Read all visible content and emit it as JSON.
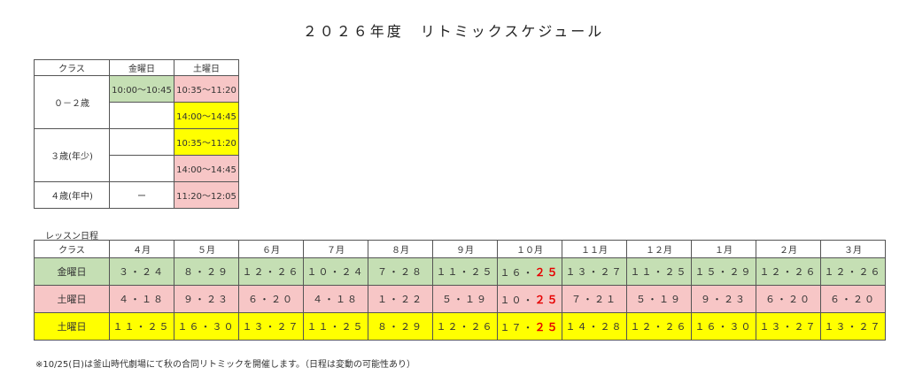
{
  "title": "２０２６年度　リトミックスケジュール",
  "class_table": {
    "headers": [
      "クラス",
      "金曜日",
      "土曜日"
    ],
    "rows": [
      {
        "class": "０－２歳",
        "fri": "10:00〜10:45",
        "sat": "10:35〜11:20"
      },
      {
        "class": "",
        "fri": "",
        "sat": "14:00〜14:45"
      },
      {
        "class": "３歳(年少)",
        "fri": "",
        "sat": "10:35〜11:20"
      },
      {
        "class": "",
        "fri": "",
        "sat": "14:00〜14:45"
      },
      {
        "class": "４歳(年中)",
        "fri": "ー",
        "sat": "11:20〜12:05"
      }
    ]
  },
  "lesson_caption": "レッスン日程",
  "lesson_table": {
    "header_first": "クラス",
    "months": [
      "４月",
      "５月",
      "６月",
      "７月",
      "８月",
      "９月",
      "１０月",
      "１１月",
      "１２月",
      "１月",
      "２月",
      "３月"
    ],
    "rows": [
      {
        "label": "金曜日",
        "color": "#c5dfb4",
        "cells": [
          {
            "a": "３・２４",
            "b": ""
          },
          {
            "a": "８・２９",
            "b": ""
          },
          {
            "a": "１２・２６",
            "b": ""
          },
          {
            "a": "１０・２４",
            "b": ""
          },
          {
            "a": "７・２８",
            "b": ""
          },
          {
            "a": "１１・２５",
            "b": ""
          },
          {
            "a": "１６・",
            "b": "２５"
          },
          {
            "a": "１３・２７",
            "b": ""
          },
          {
            "a": "１１・２５",
            "b": ""
          },
          {
            "a": "１５・２９",
            "b": ""
          },
          {
            "a": "１２・２６",
            "b": ""
          },
          {
            "a": "１２・２６",
            "b": ""
          }
        ]
      },
      {
        "label": "土曜日",
        "color": "#f7c6c6",
        "cells": [
          {
            "a": "４・１８",
            "b": ""
          },
          {
            "a": "９・２３",
            "b": ""
          },
          {
            "a": "６・２０",
            "b": ""
          },
          {
            "a": "４・１８",
            "b": ""
          },
          {
            "a": "１・２２",
            "b": ""
          },
          {
            "a": "５・１９",
            "b": ""
          },
          {
            "a": "１０・",
            "b": "２５"
          },
          {
            "a": "７・２１",
            "b": ""
          },
          {
            "a": "５・１９",
            "b": ""
          },
          {
            "a": "９・２３",
            "b": ""
          },
          {
            "a": "６・２０",
            "b": ""
          },
          {
            "a": "６・２０",
            "b": ""
          }
        ]
      },
      {
        "label": "土曜日",
        "color": "#ffff00",
        "cells": [
          {
            "a": "１１・２５",
            "b": ""
          },
          {
            "a": "１６・３０",
            "b": ""
          },
          {
            "a": "１３・２７",
            "b": ""
          },
          {
            "a": "１１・２５",
            "b": ""
          },
          {
            "a": "８・２９",
            "b": ""
          },
          {
            "a": "１２・２６",
            "b": ""
          },
          {
            "a": "１７・",
            "b": "２５"
          },
          {
            "a": "１４・２８",
            "b": ""
          },
          {
            "a": "１２・２６",
            "b": ""
          },
          {
            "a": "１６・３０",
            "b": ""
          },
          {
            "a": "１３・２７",
            "b": ""
          },
          {
            "a": "１３・２７",
            "b": ""
          }
        ]
      }
    ]
  },
  "note": "※10/25(日)は釜山時代劇場にて秋の合同リトミックを開催します。（日程は変動の可能性あり）"
}
